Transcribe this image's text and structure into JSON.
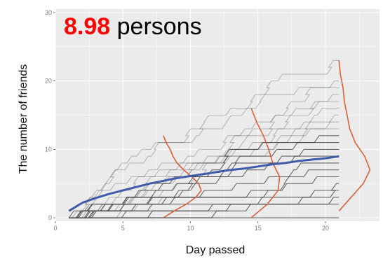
{
  "headline": {
    "value": "8.98",
    "unit": "persons",
    "value_color": "#ff0000"
  },
  "chart_data": {
    "type": "line",
    "title": "",
    "xlabel": "Day passed",
    "ylabel": "The number of friends",
    "xlim": [
      0,
      24
    ],
    "ylim": [
      -0.5,
      30.5
    ],
    "x_ticks": [
      "0",
      "5",
      "10",
      "15",
      "20"
    ],
    "y_ticks": [
      "0",
      "10",
      "20",
      "30"
    ],
    "grid": true,
    "panel_color": "#ebebeb",
    "individual_line_color": "#3a3a3a",
    "trend": {
      "color": "#3f5ba9",
      "x": [
        1,
        2,
        3,
        4,
        5,
        6,
        7,
        8,
        9,
        10,
        11,
        12,
        13,
        14,
        15,
        16,
        17,
        18,
        19,
        20,
        21
      ],
      "y": [
        1.0,
        2.2,
        2.9,
        3.5,
        4.0,
        4.5,
        5.0,
        5.4,
        5.8,
        6.1,
        6.4,
        6.7,
        7.0,
        7.2,
        7.5,
        7.8,
        8.0,
        8.3,
        8.5,
        8.7,
        8.98
      ]
    },
    "final_day": 21,
    "final_mean": 8.98,
    "final_levels": [
      0,
      2,
      3,
      4,
      5,
      6,
      7,
      8,
      9,
      10,
      11,
      12,
      13,
      14,
      15,
      16,
      17,
      18,
      19,
      20,
      23
    ],
    "densities": {
      "color": "#d9603b",
      "curves": [
        {
          "day": 8,
          "y": [
            0,
            1,
            2,
            3,
            4,
            5,
            6,
            7,
            8,
            9,
            10,
            11,
            12
          ],
          "spread_days": [
            0.0,
            0.8,
            1.7,
            2.4,
            2.8,
            2.6,
            2.1,
            1.5,
            1.0,
            0.7,
            0.5,
            0.2,
            0.0
          ]
        },
        {
          "day": 14.5,
          "y": [
            0,
            2,
            4,
            6,
            8,
            10,
            12,
            14,
            16
          ],
          "spread_days": [
            0.0,
            1.2,
            2.0,
            2.1,
            1.6,
            1.3,
            0.9,
            0.4,
            0.0
          ]
        },
        {
          "day": 21,
          "y": [
            1,
            3,
            5,
            7,
            9,
            11,
            13,
            15,
            17,
            19,
            21,
            23
          ],
          "spread_days": [
            0.0,
            0.9,
            1.8,
            2.3,
            1.9,
            1.2,
            0.8,
            0.6,
            0.4,
            0.3,
            0.1,
            0.0
          ]
        }
      ]
    }
  }
}
